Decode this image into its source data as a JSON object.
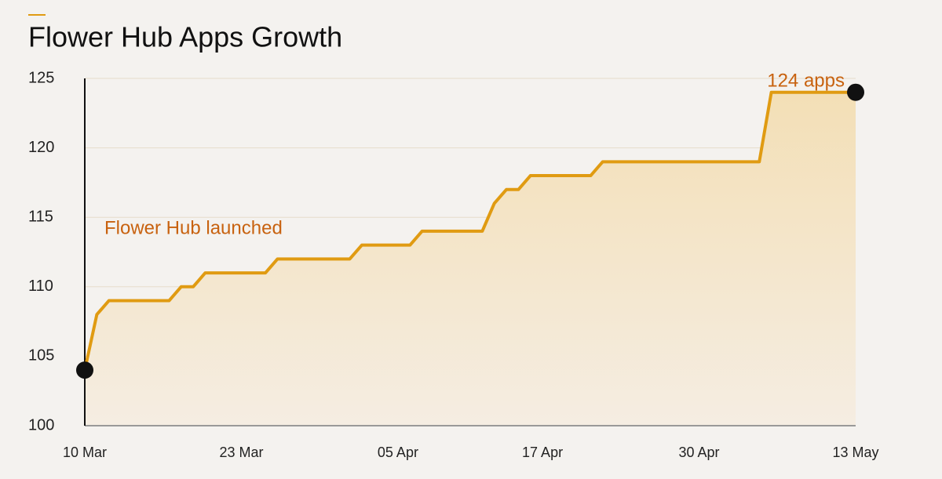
{
  "chart_data": {
    "type": "line",
    "title": "Flower Hub Apps Growth",
    "categories": [
      "10 Mar",
      null,
      null,
      null,
      null,
      null,
      null,
      null,
      null,
      null,
      null,
      null,
      null,
      "23 Mar",
      null,
      null,
      null,
      null,
      null,
      null,
      null,
      null,
      null,
      null,
      null,
      null,
      "05 Apr",
      null,
      null,
      null,
      null,
      null,
      null,
      null,
      null,
      null,
      null,
      null,
      "17 Apr",
      null,
      null,
      null,
      null,
      null,
      null,
      null,
      null,
      null,
      null,
      null,
      null,
      "30 Apr",
      null,
      null,
      null,
      null,
      null,
      null,
      null,
      null,
      null,
      null,
      null,
      null,
      "13 May"
    ],
    "series": [
      {
        "color": "#e09b12",
        "values": [
          104,
          108,
          109,
          109,
          109,
          109,
          109,
          109,
          110,
          110,
          111,
          111,
          111,
          111,
          111,
          111,
          112,
          112,
          112,
          112,
          112,
          112,
          112,
          113,
          113,
          113,
          113,
          113,
          114,
          114,
          114,
          114,
          114,
          114,
          116,
          117,
          117,
          118,
          118,
          118,
          118,
          118,
          118,
          119,
          119,
          119,
          119,
          119,
          119,
          119,
          119,
          119,
          119,
          119,
          119,
          119,
          119,
          124,
          124,
          124,
          124,
          124,
          124,
          124,
          124
        ]
      }
    ],
    "annotations": [
      "Flower Hub launched",
      "124 apps"
    ],
    "ylim": [
      100,
      125
    ],
    "yticks": [
      100,
      105,
      110,
      115,
      120,
      125
    ],
    "grid": true
  }
}
